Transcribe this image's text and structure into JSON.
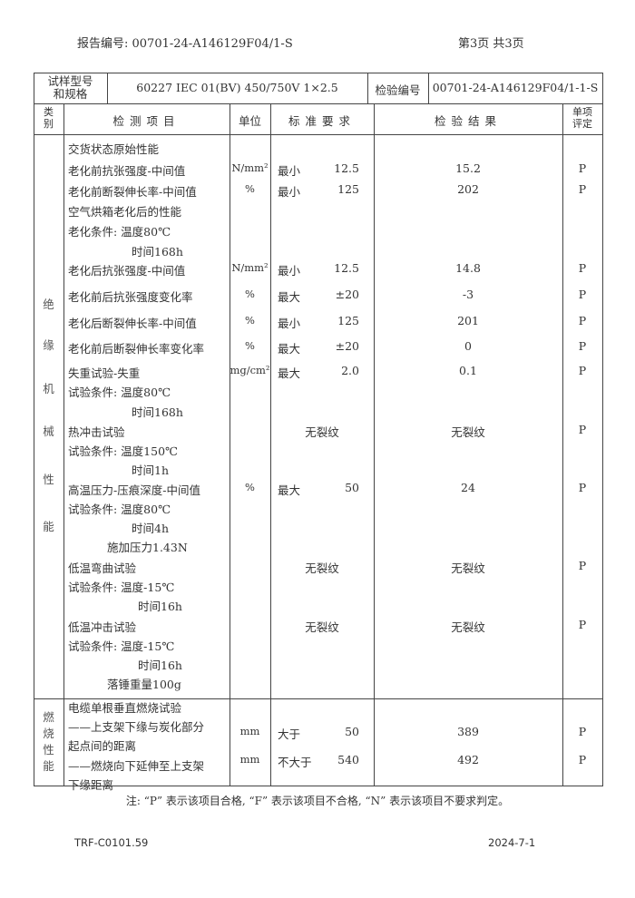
{
  "header": {
    "report_no": "报告编号: 00701-24-A146129F04/1-S",
    "page": "第3页  共3页"
  },
  "sample": {
    "model_label": [
      "试样型号",
      "和规格"
    ],
    "model_value": "60227 IEC 01(BV) 450/750V 1×2.5",
    "inspection_label": "检验编号",
    "inspection_value": "00701-24-A146129F04/1-1-S"
  },
  "columns": {
    "category": [
      "类",
      "别"
    ],
    "item": "检测项目",
    "unit": "单位",
    "standard": "标准要求",
    "result": "检验结果",
    "evaluation": [
      "单项",
      "评定"
    ]
  },
  "sections": [
    {
      "category": [
        "绝",
        "缘",
        "机",
        "械",
        "性",
        "能"
      ],
      "rows": [
        {
          "item": "交货状态原始性能"
        },
        {
          "item": "老化前抗张强度-中间值",
          "unit": "N/mm²",
          "std_label": "最小",
          "std_value": "12.5",
          "result": "15.2",
          "eval": "P"
        },
        {
          "item": "老化前断裂伸长率-中间值",
          "unit": "%",
          "std_label": "最小",
          "std_value": "125",
          "result": "202",
          "eval": "P"
        },
        {
          "item": "空气烘箱老化后的性能"
        },
        {
          "item": "老化条件:  温度80℃"
        },
        {
          "item": "时间168h"
        },
        {
          "item": "老化后抗张强度-中间值",
          "unit": "N/mm²",
          "std_label": "最小",
          "std_value": "12.5",
          "result": "14.8",
          "eval": "P"
        },
        {
          "item": "老化前后抗张强度变化率",
          "unit": "%",
          "std_label": "最大",
          "std_value": "±20",
          "result": "-3",
          "eval": "P"
        },
        {
          "item": "老化后断裂伸长率-中间值",
          "unit": "%",
          "std_label": "最小",
          "std_value": "125",
          "result": "201",
          "eval": "P"
        },
        {
          "item": "老化前后断裂伸长率变化率",
          "unit": "%",
          "std_label": "最大",
          "std_value": "±20",
          "result": "0",
          "eval": "P"
        },
        {
          "item": "失重试验-失重",
          "unit": "mg/cm²",
          "std_label": "最大",
          "std_value": "2.0",
          "result": "0.1",
          "eval": "P"
        },
        {
          "item": "试验条件:  温度80℃"
        },
        {
          "item": "时间168h"
        },
        {
          "item": "热冲击试验",
          "std_text": "无裂纹",
          "result": "无裂纹",
          "eval": "P"
        },
        {
          "item": "试验条件:  温度150℃"
        },
        {
          "item": "时间1h"
        },
        {
          "item": "高温压力-压痕深度-中间值",
          "unit": "%",
          "std_label": "最大",
          "std_value": "50",
          "result": "24",
          "eval": "P"
        },
        {
          "item": "试验条件:  温度80℃"
        },
        {
          "item": "时间4h"
        },
        {
          "item": "施加压力1.43N"
        },
        {
          "item": "低温弯曲试验",
          "std_text": "无裂纹",
          "result": "无裂纹",
          "eval": "P"
        },
        {
          "item": "试验条件:   温度-15℃"
        },
        {
          "item": "时间16h"
        },
        {
          "item": "低温冲击试验",
          "std_text": "无裂纹",
          "result": "无裂纹",
          "eval": "P"
        },
        {
          "item": "试验条件:   温度-15℃"
        },
        {
          "item": "时间16h"
        },
        {
          "item": "落锤重量100g"
        }
      ]
    },
    {
      "category": [
        "燃",
        "烧",
        "性",
        "能"
      ],
      "rows": [
        {
          "item": "电缆单根垂直燃烧试验"
        },
        {
          "item": "——上支架下缘与炭化部分"
        },
        {
          "item": "起点间的距离"
        },
        {
          "item": "——燃烧向下延伸至上支架"
        },
        {
          "item": "下缘距离"
        }
      ],
      "results": [
        {
          "unit": "mm",
          "std_label": "大于",
          "std_value": "50",
          "result": "389",
          "eval": "P"
        },
        {
          "unit": "mm",
          "std_label": "不大于",
          "std_value": "540",
          "result": "492",
          "eval": "P"
        }
      ]
    }
  ],
  "note": "注:  “P” 表示该项目合格,  “F” 表示该项目不合格,  “N” 表示该项目不要求判定。",
  "footer": {
    "form_no": "TRF-C0101.59",
    "date": "2024-7-1"
  }
}
